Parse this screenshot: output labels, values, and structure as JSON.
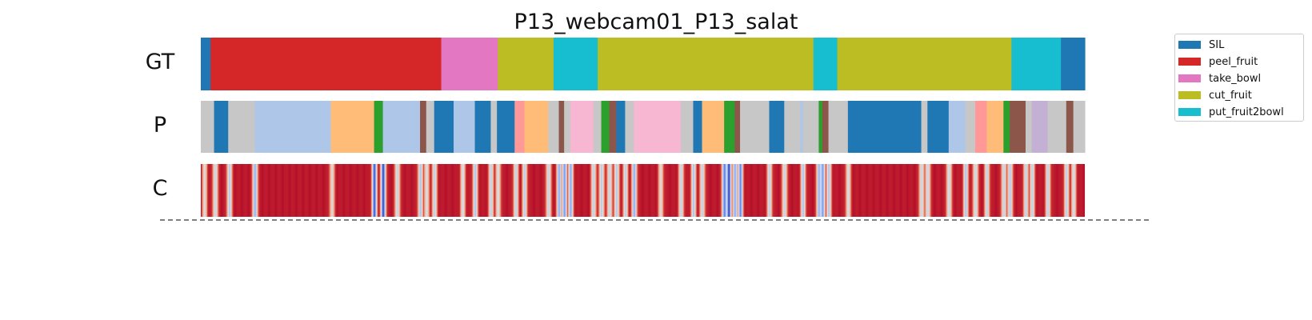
{
  "chart_data": {
    "type": "heatmap",
    "title": "P13_webcam01_P13_salat",
    "rows": [
      "GT",
      "P",
      "C"
    ],
    "legend": {
      "placement": "outside-right",
      "entries": [
        {
          "label": "SIL",
          "color": "#1f77b4"
        },
        {
          "label": "peel_fruit",
          "color": "#d62728"
        },
        {
          "label": "take_bowl",
          "color": "#e377c2"
        },
        {
          "label": "cut_fruit",
          "color": "#bcbd22"
        },
        {
          "label": "put_fruit2bowl",
          "color": "#17becf"
        }
      ]
    },
    "palette": {
      "SIL": "#1f77b4",
      "peel_fruit": "#d62728",
      "take_bowl": "#e377c2",
      "cut_fruit": "#bcbd22",
      "put_fruit2bowl": "#17becf",
      "c_light_blue": "#aec7e8",
      "c_orange_light": "#ffbb78",
      "c_green": "#2ca02c",
      "c_brown": "#8c564b",
      "c_salmon": "#ff9896",
      "c_pink_light": "#f7b6d2",
      "c_gray_light": "#c7c7c7",
      "c_lavender": "#c5b0d5"
    },
    "gt_segments": [
      {
        "label": "SIL",
        "start": 0.0,
        "end": 0.011
      },
      {
        "label": "peel_fruit",
        "start": 0.011,
        "end": 0.272
      },
      {
        "label": "take_bowl",
        "start": 0.272,
        "end": 0.336
      },
      {
        "label": "cut_fruit",
        "start": 0.336,
        "end": 0.399
      },
      {
        "label": "put_fruit2bowl",
        "start": 0.399,
        "end": 0.449
      },
      {
        "label": "cut_fruit",
        "start": 0.449,
        "end": 0.693
      },
      {
        "label": "put_fruit2bowl",
        "start": 0.693,
        "end": 0.72
      },
      {
        "label": "cut_fruit",
        "start": 0.72,
        "end": 0.917
      },
      {
        "label": "put_fruit2bowl",
        "start": 0.917,
        "end": 0.973
      },
      {
        "label": "SIL",
        "start": 0.973,
        "end": 1.0
      }
    ],
    "pred_segments": [
      {
        "color": "#c7c7c7",
        "start": 0.0,
        "end": 0.015
      },
      {
        "color": "#1f77b4",
        "start": 0.015,
        "end": 0.031
      },
      {
        "color": "#c7c7c7",
        "start": 0.031,
        "end": 0.061
      },
      {
        "color": "#aec7e8",
        "start": 0.061,
        "end": 0.147
      },
      {
        "color": "#ffbb78",
        "start": 0.147,
        "end": 0.196
      },
      {
        "color": "#2ca02c",
        "start": 0.196,
        "end": 0.206
      },
      {
        "color": "#aec7e8",
        "start": 0.206,
        "end": 0.248
      },
      {
        "color": "#8c564b",
        "start": 0.248,
        "end": 0.255
      },
      {
        "color": "#c7c7c7",
        "start": 0.255,
        "end": 0.264
      },
      {
        "color": "#1f77b4",
        "start": 0.264,
        "end": 0.286
      },
      {
        "color": "#aec7e8",
        "start": 0.286,
        "end": 0.31
      },
      {
        "color": "#1f77b4",
        "start": 0.31,
        "end": 0.328
      },
      {
        "color": "#c7c7c7",
        "start": 0.328,
        "end": 0.335
      },
      {
        "color": "#1f77b4",
        "start": 0.335,
        "end": 0.355
      },
      {
        "color": "#ff9896",
        "start": 0.355,
        "end": 0.366
      },
      {
        "color": "#ffbb78",
        "start": 0.366,
        "end": 0.393
      },
      {
        "color": "#c7c7c7",
        "start": 0.393,
        "end": 0.405
      },
      {
        "color": "#8c564b",
        "start": 0.405,
        "end": 0.411
      },
      {
        "color": "#c7c7c7",
        "start": 0.411,
        "end": 0.418
      },
      {
        "color": "#f7b6d2",
        "start": 0.418,
        "end": 0.444
      },
      {
        "color": "#c7c7c7",
        "start": 0.444,
        "end": 0.453
      },
      {
        "color": "#2ca02c",
        "start": 0.453,
        "end": 0.462
      },
      {
        "color": "#8c564b",
        "start": 0.462,
        "end": 0.47
      },
      {
        "color": "#1f77b4",
        "start": 0.47,
        "end": 0.48
      },
      {
        "color": "#c7c7c7",
        "start": 0.48,
        "end": 0.49
      },
      {
        "color": "#f7b6d2",
        "start": 0.49,
        "end": 0.543
      },
      {
        "color": "#c7c7c7",
        "start": 0.543,
        "end": 0.557
      },
      {
        "color": "#1f77b4",
        "start": 0.557,
        "end": 0.567
      },
      {
        "color": "#ffbb78",
        "start": 0.567,
        "end": 0.592
      },
      {
        "color": "#2ca02c",
        "start": 0.592,
        "end": 0.604
      },
      {
        "color": "#8c564b",
        "start": 0.604,
        "end": 0.61
      },
      {
        "color": "#c7c7c7",
        "start": 0.61,
        "end": 0.643
      },
      {
        "color": "#1f77b4",
        "start": 0.643,
        "end": 0.66
      },
      {
        "color": "#c7c7c7",
        "start": 0.66,
        "end": 0.678
      },
      {
        "color": "#aec7e8",
        "start": 0.678,
        "end": 0.681
      },
      {
        "color": "#c7c7c7",
        "start": 0.681,
        "end": 0.699
      },
      {
        "color": "#2ca02c",
        "start": 0.699,
        "end": 0.703
      },
      {
        "color": "#8c564b",
        "start": 0.703,
        "end": 0.71
      },
      {
        "color": "#c7c7c7",
        "start": 0.71,
        "end": 0.732
      },
      {
        "color": "#1f77b4",
        "start": 0.732,
        "end": 0.815
      },
      {
        "color": "#c7c7c7",
        "start": 0.815,
        "end": 0.822
      },
      {
        "color": "#1f77b4",
        "start": 0.822,
        "end": 0.846
      },
      {
        "color": "#aec7e8",
        "start": 0.846,
        "end": 0.865
      },
      {
        "color": "#c7c7c7",
        "start": 0.865,
        "end": 0.876
      },
      {
        "color": "#ff9896",
        "start": 0.876,
        "end": 0.889
      },
      {
        "color": "#ffbb78",
        "start": 0.889,
        "end": 0.908
      },
      {
        "color": "#2ca02c",
        "start": 0.908,
        "end": 0.915
      },
      {
        "color": "#8c564b",
        "start": 0.915,
        "end": 0.933
      },
      {
        "color": "#c7c7c7",
        "start": 0.933,
        "end": 0.94
      },
      {
        "color": "#c5b0d5",
        "start": 0.94,
        "end": 0.958
      },
      {
        "color": "#c7c7c7",
        "start": 0.958,
        "end": 0.979
      },
      {
        "color": "#8c564b",
        "start": 0.979,
        "end": 0.987
      },
      {
        "color": "#c7c7c7",
        "start": 0.987,
        "end": 1.0
      }
    ],
    "confidence": {
      "colormap": "coolwarm",
      "base_color": "#b40e2a",
      "dips": [
        {
          "pos": 0.004,
          "level": 0.55
        },
        {
          "pos": 0.016,
          "level": 0.45
        },
        {
          "pos": 0.032,
          "level": 0.4
        },
        {
          "pos": 0.061,
          "level": 0.3
        },
        {
          "pos": 0.148,
          "level": 0.55
        },
        {
          "pos": 0.196,
          "level": 0.1
        },
        {
          "pos": 0.206,
          "level": 0.05
        },
        {
          "pos": 0.222,
          "level": 0.45
        },
        {
          "pos": 0.248,
          "level": 0.4
        },
        {
          "pos": 0.255,
          "level": 0.5
        },
        {
          "pos": 0.264,
          "level": 0.45
        },
        {
          "pos": 0.296,
          "level": 0.5
        },
        {
          "pos": 0.31,
          "level": 0.4
        },
        {
          "pos": 0.328,
          "level": 0.45
        },
        {
          "pos": 0.336,
          "level": 0.5
        },
        {
          "pos": 0.356,
          "level": 0.45
        },
        {
          "pos": 0.366,
          "level": 0.45
        },
        {
          "pos": 0.393,
          "level": 0.45
        },
        {
          "pos": 0.405,
          "level": 0.3
        },
        {
          "pos": 0.411,
          "level": 0.25
        },
        {
          "pos": 0.418,
          "level": 0.3
        },
        {
          "pos": 0.444,
          "level": 0.45
        },
        {
          "pos": 0.453,
          "level": 0.4
        },
        {
          "pos": 0.462,
          "level": 0.45
        },
        {
          "pos": 0.47,
          "level": 0.4
        },
        {
          "pos": 0.48,
          "level": 0.45
        },
        {
          "pos": 0.49,
          "level": 0.3
        },
        {
          "pos": 0.52,
          "level": 0.55
        },
        {
          "pos": 0.543,
          "level": 0.45
        },
        {
          "pos": 0.557,
          "level": 0.4
        },
        {
          "pos": 0.567,
          "level": 0.45
        },
        {
          "pos": 0.592,
          "level": 0.15
        },
        {
          "pos": 0.597,
          "level": 0.05
        },
        {
          "pos": 0.604,
          "level": 0.3
        },
        {
          "pos": 0.61,
          "level": 0.2
        },
        {
          "pos": 0.643,
          "level": 0.45
        },
        {
          "pos": 0.66,
          "level": 0.45
        },
        {
          "pos": 0.681,
          "level": 0.4
        },
        {
          "pos": 0.699,
          "level": 0.3
        },
        {
          "pos": 0.703,
          "level": 0.25
        },
        {
          "pos": 0.71,
          "level": 0.4
        },
        {
          "pos": 0.732,
          "level": 0.5
        },
        {
          "pos": 0.815,
          "level": 0.45
        },
        {
          "pos": 0.822,
          "level": 0.45
        },
        {
          "pos": 0.846,
          "level": 0.45
        },
        {
          "pos": 0.865,
          "level": 0.4
        },
        {
          "pos": 0.876,
          "level": 0.45
        },
        {
          "pos": 0.889,
          "level": 0.45
        },
        {
          "pos": 0.908,
          "level": 0.45
        },
        {
          "pos": 0.915,
          "level": 0.4
        },
        {
          "pos": 0.933,
          "level": 0.45
        },
        {
          "pos": 0.94,
          "level": 0.45
        },
        {
          "pos": 0.958,
          "level": 0.45
        },
        {
          "pos": 0.979,
          "level": 0.45
        },
        {
          "pos": 0.987,
          "level": 0.5
        }
      ]
    }
  }
}
